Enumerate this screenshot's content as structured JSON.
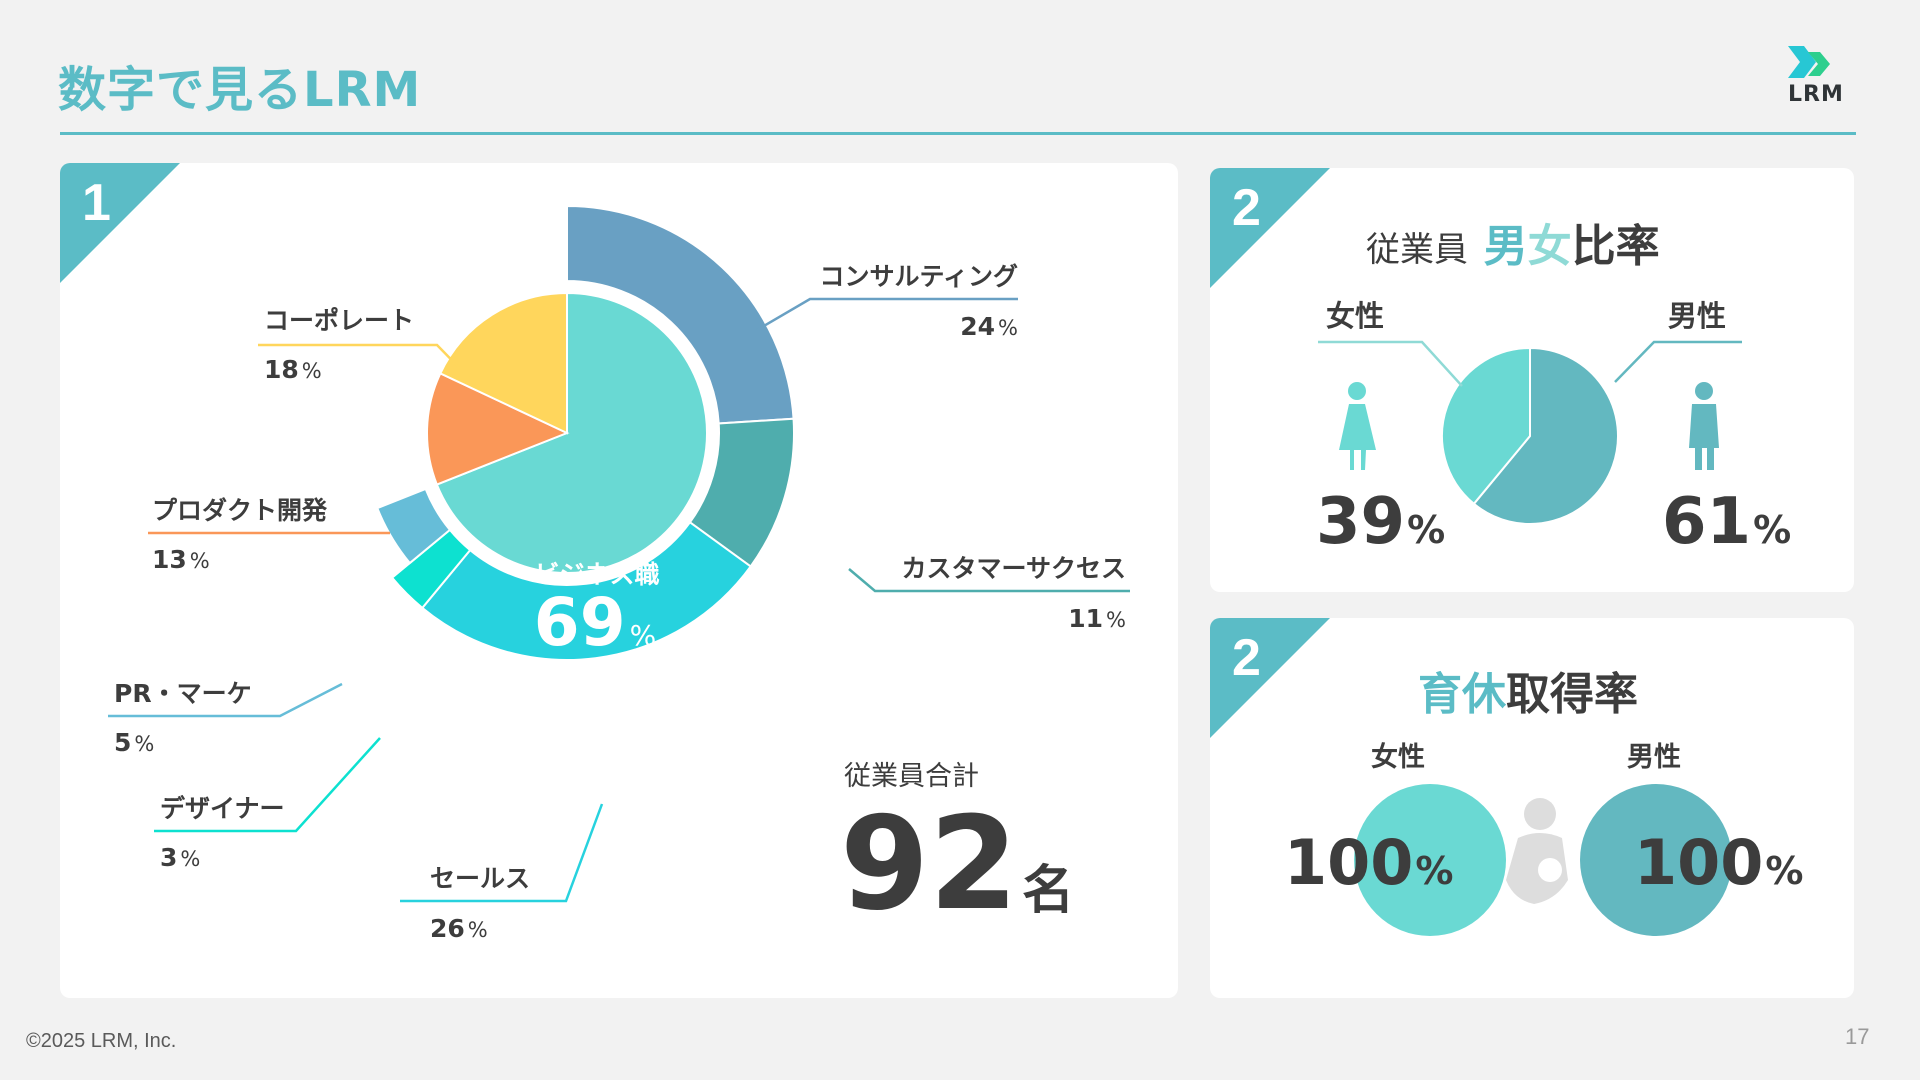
{
  "page": {
    "title": "数字で見るLRM",
    "logo_text": "LRM",
    "copyright": "©2025 LRM, Inc.",
    "page_number": "17"
  },
  "colors": {
    "accent": "#5bbcc6",
    "text": "#3d3d3d",
    "business": "#69d9d3",
    "corporate": "#ffd65c",
    "product": "#fa9758",
    "consulting": "#69a0c3",
    "customer_success": "#4fadad",
    "sales": "#27d2de",
    "designer": "#0de1d0",
    "pr_marketing": "#66bdd8",
    "female": "#6ad9d3",
    "male": "#63b8c0"
  },
  "card1": {
    "badge": "1",
    "center_label": "ビジネス職",
    "center_value": "69",
    "center_unit": "%",
    "total_label": "従業員合計",
    "total_value": "92",
    "total_unit": "名"
  },
  "card2": {
    "badge": "2",
    "title_prefix": "従業員",
    "title_male": "男",
    "title_female": "女",
    "title_suffix": "比率",
    "female_label": "女性",
    "male_label": "男性",
    "female_value": "39",
    "male_value": "61",
    "unit": "%"
  },
  "card3": {
    "badge": "2",
    "title_colored": "育休",
    "title_dark": "取得率",
    "female_label": "女性",
    "male_label": "男性",
    "female_value": "100",
    "male_value": "100",
    "unit": "%"
  },
  "chart_data": [
    {
      "type": "pie",
      "subtype": "nested-donut",
      "inner": [
        {
          "label": "ビジネス職",
          "value": 69
        },
        {
          "label": "プロダクト開発",
          "value": 13
        },
        {
          "label": "コーポレート",
          "value": 18
        }
      ],
      "outer": [
        {
          "label": "コンサルティング",
          "value": 24,
          "unit": "%"
        },
        {
          "label": "カスタマーサクセス",
          "value": 11,
          "unit": "%"
        },
        {
          "label": "セールス",
          "value": 26,
          "unit": "%"
        },
        {
          "label": "デザイナー",
          "value": 3,
          "unit": "%"
        },
        {
          "label": "PR・マーケ",
          "value": 5,
          "unit": "%"
        }
      ],
      "inner_labels": [
        {
          "label": "プロダクト開発",
          "value": 13,
          "unit": "%"
        },
        {
          "label": "コーポレート",
          "value": 18,
          "unit": "%"
        }
      ]
    },
    {
      "type": "pie",
      "slices": [
        {
          "label": "女性",
          "value": 39
        },
        {
          "label": "男性",
          "value": 61
        }
      ]
    }
  ]
}
